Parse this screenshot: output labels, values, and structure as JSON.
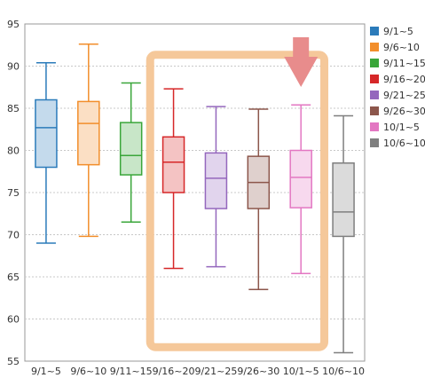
{
  "chart_data": {
    "type": "box",
    "title": "",
    "xlabel": "",
    "ylabel": "",
    "ylim": [
      55,
      95
    ],
    "yticks": [
      55,
      60,
      65,
      70,
      75,
      80,
      85,
      90,
      95
    ],
    "grid": "horizontal dashed",
    "legend_position": "right",
    "categories": [
      "9/1~5",
      "9/6~10",
      "9/11~15",
      "9/16~20",
      "9/21~25",
      "9/26~30",
      "10/1~5",
      "10/6~10"
    ],
    "series": [
      {
        "name": "9/1~5",
        "color": "#2b7bba",
        "min": 69.0,
        "q1": 78.0,
        "median": 82.7,
        "q3": 86.0,
        "max": 90.4
      },
      {
        "name": "9/6~10",
        "color": "#f28e2b",
        "min": 69.8,
        "q1": 78.3,
        "median": 83.2,
        "q3": 85.8,
        "max": 92.6
      },
      {
        "name": "9/11~15",
        "color": "#3aa63a",
        "min": 71.5,
        "q1": 77.1,
        "median": 79.4,
        "q3": 83.3,
        "max": 88.0
      },
      {
        "name": "9/16~20",
        "color": "#d62728",
        "min": 66.0,
        "q1": 75.0,
        "median": 78.6,
        "q3": 81.6,
        "max": 87.3
      },
      {
        "name": "9/21~25",
        "color": "#9467bd",
        "min": 66.2,
        "q1": 73.1,
        "median": 76.7,
        "q3": 79.7,
        "max": 85.2
      },
      {
        "name": "9/26~30",
        "color": "#8c564b",
        "min": 63.5,
        "q1": 73.1,
        "median": 76.2,
        "q3": 79.3,
        "max": 84.9
      },
      {
        "name": "10/1~5",
        "color": "#e377c2",
        "min": 65.4,
        "q1": 73.2,
        "median": 76.8,
        "q3": 80.0,
        "max": 85.4
      },
      {
        "name": "10/6~10",
        "color": "#7f7f7f",
        "min": 56.0,
        "q1": 69.8,
        "median": 72.7,
        "q3": 78.5,
        "max": 84.1
      }
    ],
    "annotations": [
      {
        "type": "highlight-box",
        "color": "#f5c89a",
        "spans": [
          "9/16~20",
          "10/1~5"
        ]
      },
      {
        "type": "down-arrow",
        "color": "#e88c8c",
        "above": "10/1~5"
      }
    ]
  }
}
